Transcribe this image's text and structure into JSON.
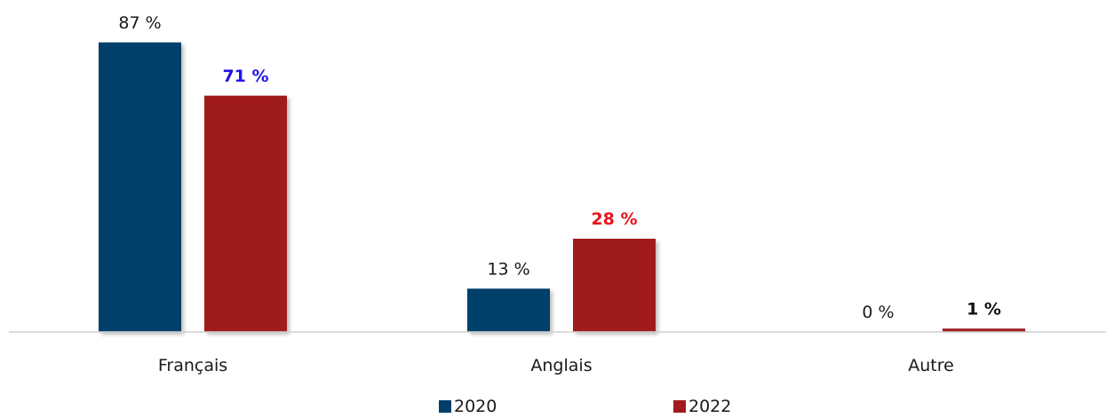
{
  "chart_data": {
    "type": "bar",
    "categories": [
      "Français",
      "Anglais",
      "Autre"
    ],
    "series": [
      {
        "name": "2020",
        "color": "#003F6B",
        "values": [
          87,
          13,
          0
        ],
        "labels": [
          "87 %",
          "13 %",
          "0 %"
        ]
      },
      {
        "name": "2022",
        "color": "#A01C1C",
        "values": [
          71,
          28,
          1
        ],
        "labels": [
          "71 %",
          "28 %",
          "1 %"
        ],
        "label_colors": [
          "#1E14E6",
          "#E8141A",
          "#111111"
        ]
      }
    ],
    "ylim": [
      0,
      100
    ],
    "grid": false,
    "legend_position": "bottom"
  }
}
